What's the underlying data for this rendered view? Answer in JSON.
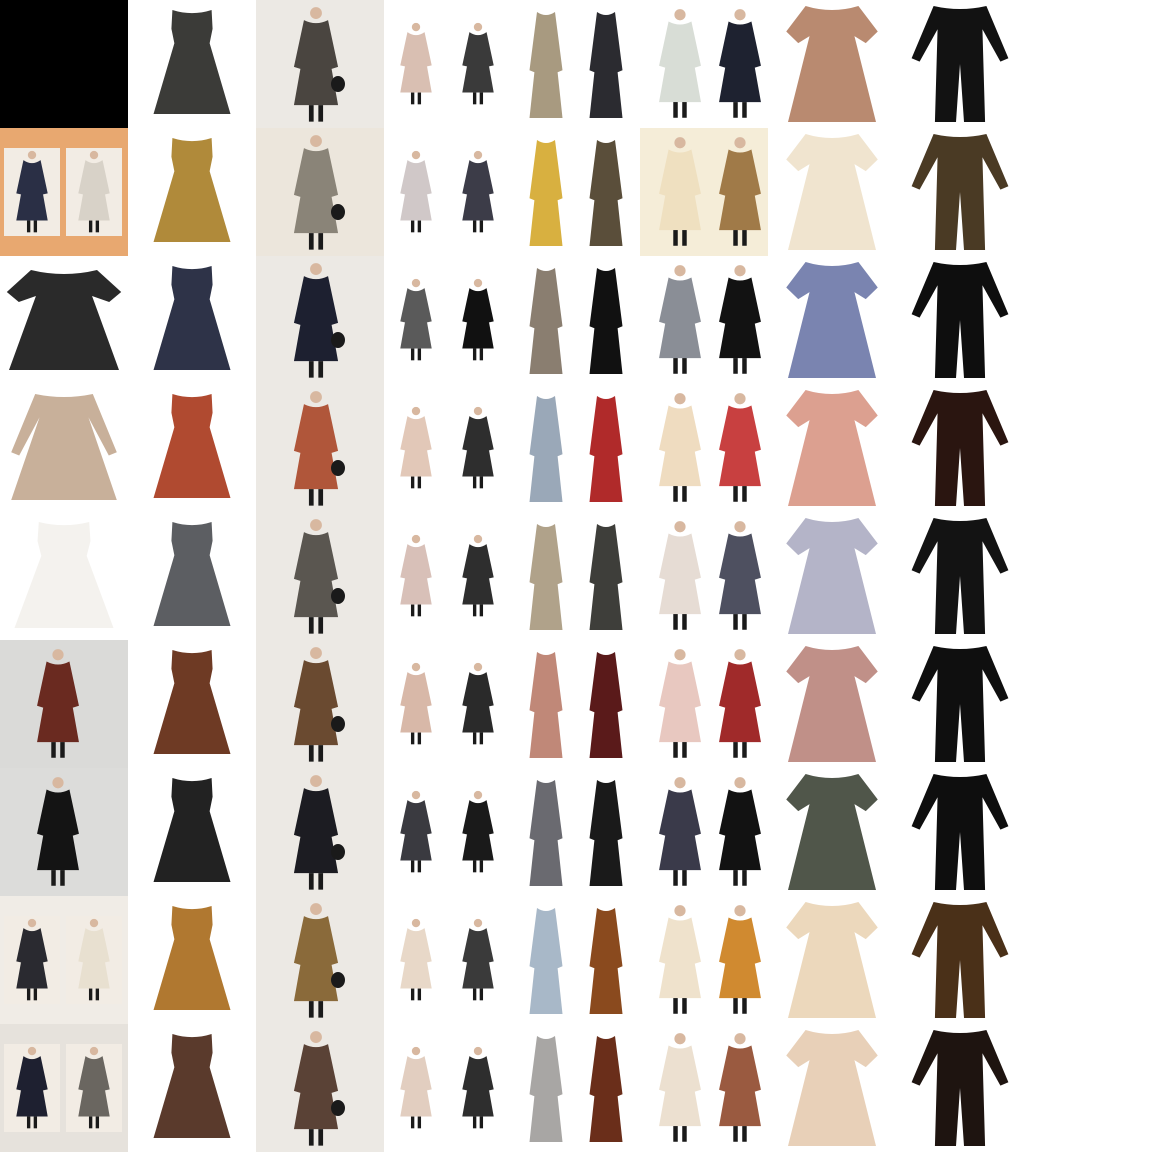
{
  "grid": {
    "rows": 9,
    "columns": 9,
    "background": "#ffffff",
    "column_styles": [
      "mixed",
      "sleeveless-dress",
      "long-coat-photo",
      "paired-model-photos",
      "paired-maxi-dresses",
      "paired-model-photos-wide",
      "short-sleeve-dress",
      "jumpsuit",
      "none"
    ],
    "cells": [
      [
        {
          "kind": "black-square",
          "colors": [
            "#000000"
          ]
        },
        {
          "kind": "sleeveless-dress",
          "colors": [
            "#3b3b38"
          ]
        },
        {
          "kind": "long-coat-photo",
          "colors": [
            "#4a4540"
          ],
          "bg": "#ece9e4"
        },
        {
          "kind": "paired-model-photos",
          "colors": [
            "#d9bfb2",
            "#3a3a3a"
          ]
        },
        {
          "kind": "paired-maxi-dresses",
          "colors": [
            "#a89a80",
            "#2b2b30"
          ]
        },
        {
          "kind": "paired-model-photos-wide",
          "colors": [
            "#d8ddd6",
            "#1e2230"
          ]
        },
        {
          "kind": "short-sleeve-dress",
          "colors": [
            "#b98a70"
          ]
        },
        {
          "kind": "jumpsuit",
          "colors": [
            "#121212"
          ]
        },
        {
          "kind": "empty",
          "colors": []
        }
      ],
      [
        {
          "kind": "paired-model-photos",
          "colors": [
            "#2a2f45",
            "#d8d2c8"
          ],
          "bg": "#e8a870"
        },
        {
          "kind": "sleeveless-dress",
          "colors": [
            "#b08a3a"
          ]
        },
        {
          "kind": "long-coat-photo",
          "colors": [
            "#8a8478"
          ],
          "bg": "#ece6dc"
        },
        {
          "kind": "paired-model-photos",
          "colors": [
            "#d0c8c8",
            "#3c3c48"
          ]
        },
        {
          "kind": "paired-maxi-dresses",
          "colors": [
            "#d8b040",
            "#5a4e3a"
          ]
        },
        {
          "kind": "paired-model-photos-wide",
          "colors": [
            "#efe0c0",
            "#a07a48"
          ],
          "bg": "#f5edd8"
        },
        {
          "kind": "short-sleeve-dress",
          "colors": [
            "#f0e4cf"
          ]
        },
        {
          "kind": "jumpsuit",
          "colors": [
            "#4a3a24"
          ]
        },
        {
          "kind": "empty",
          "colors": []
        }
      ],
      [
        {
          "kind": "short-sleeve-top",
          "colors": [
            "#2a2a2a"
          ]
        },
        {
          "kind": "sleeveless-dress",
          "colors": [
            "#2e3348"
          ]
        },
        {
          "kind": "long-coat-photo",
          "colors": [
            "#1d2030"
          ],
          "bg": "#ece9e4"
        },
        {
          "kind": "paired-model-photos",
          "colors": [
            "#5a5a5a",
            "#111111"
          ]
        },
        {
          "kind": "paired-maxi-dresses",
          "colors": [
            "#8a7e70",
            "#111111"
          ]
        },
        {
          "kind": "paired-model-photos-wide",
          "colors": [
            "#8a8e96",
            "#121212"
          ]
        },
        {
          "kind": "short-sleeve-dress",
          "colors": [
            "#7a84b0"
          ]
        },
        {
          "kind": "jumpsuit",
          "colors": [
            "#0e0e0e"
          ]
        },
        {
          "kind": "empty",
          "colors": []
        }
      ],
      [
        {
          "kind": "long-sleeve-dress",
          "colors": [
            "#c8b09a"
          ]
        },
        {
          "kind": "sleeveless-dress",
          "colors": [
            "#b04a30"
          ]
        },
        {
          "kind": "long-coat-photo",
          "colors": [
            "#b0563a"
          ],
          "bg": "#ece9e4"
        },
        {
          "kind": "paired-model-photos",
          "colors": [
            "#e2c8b8",
            "#2e2e2e"
          ]
        },
        {
          "kind": "paired-maxi-dresses",
          "colors": [
            "#9aa8b8",
            "#b02a2a"
          ]
        },
        {
          "kind": "paired-model-photos-wide",
          "colors": [
            "#efdcc0",
            "#c84040"
          ]
        },
        {
          "kind": "short-sleeve-dress",
          "colors": [
            "#dca090"
          ]
        },
        {
          "kind": "jumpsuit",
          "colors": [
            "#2a1510"
          ]
        },
        {
          "kind": "empty",
          "colors": []
        }
      ],
      [
        {
          "kind": "sleeveless-dress-wide",
          "colors": [
            "#f4f2ee"
          ]
        },
        {
          "kind": "sleeveless-dress",
          "colors": [
            "#5c5e62"
          ]
        },
        {
          "kind": "long-coat-photo",
          "colors": [
            "#5a5650"
          ],
          "bg": "#ece9e4"
        },
        {
          "kind": "paired-model-photos",
          "colors": [
            "#d8c0b8",
            "#2e2e2e"
          ]
        },
        {
          "kind": "paired-maxi-dresses",
          "colors": [
            "#b0a28a",
            "#3e3e3a"
          ]
        },
        {
          "kind": "paired-model-photos-wide",
          "colors": [
            "#e6dcd4",
            "#4e5060"
          ]
        },
        {
          "kind": "short-sleeve-dress",
          "colors": [
            "#b4b4c8"
          ]
        },
        {
          "kind": "jumpsuit",
          "colors": [
            "#131313"
          ]
        },
        {
          "kind": "empty",
          "colors": []
        }
      ],
      [
        {
          "kind": "model-photo-dress",
          "colors": [
            "#6a2a20"
          ],
          "bg": "#dadad8"
        },
        {
          "kind": "sleeveless-dress",
          "colors": [
            "#6e3a24"
          ]
        },
        {
          "kind": "long-coat-photo",
          "colors": [
            "#6a4a30"
          ],
          "bg": "#ece9e4"
        },
        {
          "kind": "paired-model-photos",
          "colors": [
            "#d8b8a8",
            "#2a2a2a"
          ]
        },
        {
          "kind": "paired-maxi-dresses",
          "colors": [
            "#c08878",
            "#5a1a1a"
          ]
        },
        {
          "kind": "paired-model-photos-wide",
          "colors": [
            "#e8c8c0",
            "#a02a2a"
          ]
        },
        {
          "kind": "short-sleeve-dress",
          "colors": [
            "#c09088"
          ]
        },
        {
          "kind": "jumpsuit",
          "colors": [
            "#0f0f0f"
          ]
        },
        {
          "kind": "empty",
          "colors": []
        }
      ],
      [
        {
          "kind": "model-photo-dress",
          "colors": [
            "#141414"
          ],
          "bg": "#dcdcda"
        },
        {
          "kind": "sleeveless-dress",
          "colors": [
            "#222222"
          ]
        },
        {
          "kind": "long-coat-photo",
          "colors": [
            "#1c1c22"
          ],
          "bg": "#ece9e4"
        },
        {
          "kind": "paired-model-photos",
          "colors": [
            "#3a3a40",
            "#1a1a1a"
          ]
        },
        {
          "kind": "paired-maxi-dresses",
          "colors": [
            "#6a6a70",
            "#1a1a1a"
          ]
        },
        {
          "kind": "paired-model-photos-wide",
          "colors": [
            "#3a3a4a",
            "#121212"
          ]
        },
        {
          "kind": "short-sleeve-dress",
          "colors": [
            "#50564a"
          ]
        },
        {
          "kind": "jumpsuit",
          "colors": [
            "#0e0e0e"
          ]
        },
        {
          "kind": "empty",
          "colors": []
        }
      ],
      [
        {
          "kind": "paired-model-photos",
          "colors": [
            "#2a2a30",
            "#e8e0d0"
          ],
          "bg": "#f0ece6"
        },
        {
          "kind": "sleeveless-dress",
          "colors": [
            "#b07830"
          ]
        },
        {
          "kind": "long-coat-photo",
          "colors": [
            "#8a6a3a"
          ],
          "bg": "#ece9e4"
        },
        {
          "kind": "paired-model-photos",
          "colors": [
            "#e8d8c8",
            "#3a3a3a"
          ]
        },
        {
          "kind": "paired-maxi-dresses",
          "colors": [
            "#a8b8c8",
            "#8a4a1e"
          ]
        },
        {
          "kind": "paired-model-photos-wide",
          "colors": [
            "#efe2cc",
            "#d08a30"
          ]
        },
        {
          "kind": "short-sleeve-dress",
          "colors": [
            "#ecd8bc"
          ]
        },
        {
          "kind": "jumpsuit",
          "colors": [
            "#4a3018"
          ]
        },
        {
          "kind": "empty",
          "colors": []
        }
      ],
      [
        {
          "kind": "paired-model-photos",
          "colors": [
            "#1e2030",
            "#6a6660"
          ],
          "bg": "#e6e2dc"
        },
        {
          "kind": "sleeveless-dress",
          "colors": [
            "#5a3a2c"
          ]
        },
        {
          "kind": "long-coat-photo",
          "colors": [
            "#5a4236"
          ],
          "bg": "#ece9e4"
        },
        {
          "kind": "paired-model-photos",
          "colors": [
            "#e2cec0",
            "#2e2e2e"
          ]
        },
        {
          "kind": "paired-maxi-dresses",
          "colors": [
            "#a8a6a4",
            "#6a2e1a"
          ]
        },
        {
          "kind": "paired-model-photos-wide",
          "colors": [
            "#ece0d0",
            "#9a5a40"
          ]
        },
        {
          "kind": "short-sleeve-dress",
          "colors": [
            "#e8d0b8"
          ]
        },
        {
          "kind": "jumpsuit",
          "colors": [
            "#1e1410"
          ]
        },
        {
          "kind": "empty",
          "colors": []
        }
      ]
    ]
  }
}
